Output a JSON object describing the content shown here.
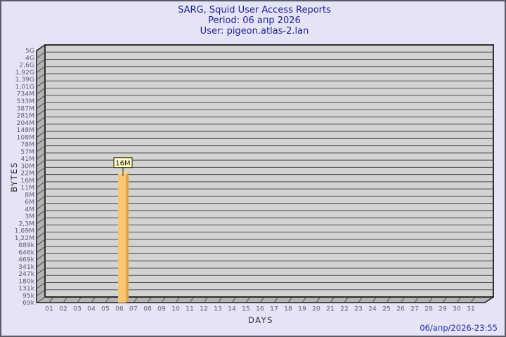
{
  "title": {
    "line1": "SARG, Squid User Access Reports",
    "line2": "Period: 06 апр 2026",
    "line3": "User: pigeon.atlas-2.lan"
  },
  "footer": {
    "timestamp": "06/апр/2026-23:55"
  },
  "chart_data": {
    "type": "bar",
    "title": "SARG, Squid User Access Reports",
    "subtitle_period": "Period: 06 апр 2026",
    "subtitle_user": "User: pigeon.atlas-2.lan",
    "xlabel": "DAYS",
    "ylabel": "BYTES",
    "y_scale": "logarithmic-byte-scale",
    "grid": "horizontal",
    "style": "3d-bar",
    "y_tick_labels_top_to_bottom": [
      "5G",
      "4G",
      "2,6G",
      "1,92G",
      "1,39G",
      "1,01G",
      "734M",
      "533M",
      "387M",
      "281M",
      "204M",
      "148M",
      "108M",
      "78M",
      "57M",
      "41M",
      "30M",
      "22M",
      "16M",
      "11M",
      "8M",
      "6M",
      "4M",
      "3M",
      "2,3M",
      "1,69M",
      "1,22M",
      "889k",
      "646k",
      "469k",
      "341k",
      "247k",
      "180k",
      "131k",
      "95k",
      "69k"
    ],
    "x_tick_labels": [
      "01",
      "02",
      "03",
      "04",
      "05",
      "06",
      "07",
      "08",
      "09",
      "10",
      "11",
      "12",
      "13",
      "14",
      "15",
      "16",
      "17",
      "18",
      "19",
      "20",
      "21",
      "22",
      "23",
      "24",
      "25",
      "26",
      "27",
      "28",
      "29",
      "30",
      "31"
    ],
    "bars": [
      {
        "day": "06",
        "value_label": "16M",
        "top_at_y_tick": "16M"
      }
    ]
  },
  "colors": {
    "page_bg": "#e4e4f6",
    "page_border": "#5c5c66",
    "title_text": "#21219a",
    "timestamp_text": "#2424bc",
    "plot_bg": "#d3d3d3",
    "wall_bg": "#b3b3b3",
    "grid_line": "#4c4c4c",
    "plot_border": "#1c1c1c",
    "tick_label": "#60606a",
    "axis_title": "#2a2a2a",
    "bar_front": "#ffc571",
    "bar_side": "#dfa64b",
    "bar_top": "#ffda90",
    "value_box_bg": "#ffffc9",
    "value_box_border": "#4a4a14",
    "value_box_text": "#1a1a1a"
  }
}
